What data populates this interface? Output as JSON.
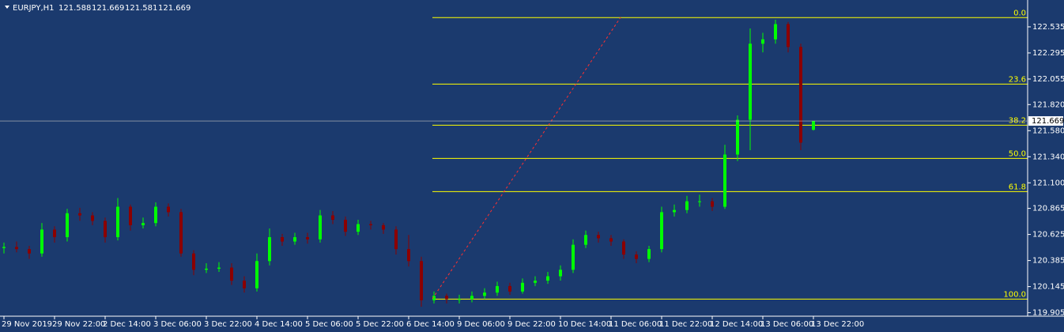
{
  "chart_data": {
    "type": "candlestick",
    "symbol": "EURJPY,H1",
    "categories": [
      "29 Nov 2019",
      null,
      null,
      null,
      "29 Nov 22:00",
      null,
      null,
      null,
      "2 Dec 14:00",
      null,
      null,
      null,
      "3 Dec 06:00",
      null,
      null,
      null,
      "3 Dec 22:00",
      null,
      null,
      null,
      "4 Dec 14:00",
      null,
      null,
      null,
      "5 Dec 06:00",
      null,
      null,
      null,
      "5 Dec 22:00",
      null,
      null,
      null,
      "6 Dec 14:00",
      null,
      null,
      null,
      "9 Dec 06:00",
      null,
      null,
      null,
      "9 Dec 22:00",
      null,
      null,
      null,
      "10 Dec 14:00",
      null,
      null,
      null,
      "11 Dec 06:00",
      null,
      null,
      null,
      "11 Dec 22:00",
      null,
      null,
      null,
      "12 Dec 14:00",
      null,
      null,
      null,
      "13 Dec 06:00",
      null,
      null,
      null,
      "13 Dec 22:00"
    ],
    "candles": {
      "open": [
        120.5,
        120.51,
        120.49,
        120.45,
        120.67,
        120.6,
        120.82,
        120.8,
        120.75,
        120.6,
        120.88,
        120.71,
        120.73,
        120.88,
        120.83,
        120.45,
        120.3,
        120.31,
        120.32,
        120.2,
        120.13,
        120.38,
        120.6,
        120.56,
        120.6,
        120.58,
        120.8,
        120.76,
        120.65,
        120.72,
        120.71,
        120.67,
        120.49,
        120.38,
        120.02,
        120.06,
        120.03,
        120.03,
        120.06,
        120.09,
        120.15,
        120.1,
        120.18,
        120.2,
        120.24,
        120.3,
        120.53,
        120.62,
        120.59,
        120.56,
        120.44,
        120.4,
        120.49,
        120.83,
        120.85,
        120.93,
        120.93,
        120.88,
        121.36,
        121.68,
        122.38,
        122.42,
        122.56,
        122.35,
        121.588
      ],
      "high": [
        120.55,
        120.56,
        120.52,
        120.73,
        120.7,
        120.86,
        120.87,
        120.83,
        120.78,
        120.96,
        120.9,
        120.78,
        120.92,
        120.91,
        120.86,
        120.48,
        120.36,
        120.37,
        120.36,
        120.24,
        120.45,
        120.68,
        120.63,
        120.64,
        120.64,
        120.85,
        120.84,
        120.79,
        120.76,
        120.75,
        120.73,
        120.7,
        120.62,
        120.42,
        120.1,
        120.08,
        120.07,
        120.1,
        120.13,
        120.19,
        120.18,
        120.22,
        120.24,
        120.28,
        120.34,
        120.58,
        120.66,
        120.65,
        120.62,
        120.58,
        120.47,
        120.52,
        120.88,
        120.9,
        120.98,
        120.99,
        120.96,
        121.45,
        121.72,
        122.52,
        122.48,
        122.6,
        122.58,
        122.38,
        121.669
      ],
      "low": [
        120.45,
        120.46,
        120.4,
        120.42,
        120.55,
        120.56,
        120.75,
        120.71,
        120.55,
        120.57,
        120.66,
        120.68,
        120.7,
        120.79,
        120.42,
        120.25,
        120.27,
        120.28,
        120.16,
        120.09,
        120.1,
        120.34,
        120.52,
        120.53,
        120.54,
        120.55,
        120.72,
        120.61,
        120.62,
        120.67,
        120.63,
        120.44,
        120.33,
        119.96,
        119.99,
        119.99,
        119.99,
        120.0,
        120.03,
        120.06,
        120.07,
        120.08,
        120.15,
        120.17,
        120.2,
        120.27,
        120.5,
        120.55,
        120.52,
        120.4,
        120.36,
        120.37,
        120.46,
        120.79,
        120.82,
        120.88,
        120.84,
        120.86,
        121.3,
        121.4,
        122.3,
        122.38,
        122.3,
        121.4,
        121.581
      ],
      "close": [
        120.51,
        120.49,
        120.45,
        120.67,
        120.6,
        120.82,
        120.8,
        120.75,
        120.6,
        120.88,
        120.71,
        120.73,
        120.88,
        120.83,
        120.45,
        120.3,
        120.31,
        120.32,
        120.2,
        120.13,
        120.38,
        120.6,
        120.56,
        120.6,
        120.58,
        120.8,
        120.76,
        120.65,
        120.72,
        120.71,
        120.67,
        120.49,
        120.38,
        120.02,
        120.06,
        120.03,
        120.03,
        120.06,
        120.09,
        120.15,
        120.1,
        120.18,
        120.2,
        120.24,
        120.3,
        120.53,
        120.62,
        120.59,
        120.56,
        120.44,
        120.4,
        120.49,
        120.83,
        120.85,
        120.93,
        120.93,
        120.88,
        121.36,
        121.68,
        122.38,
        122.42,
        122.56,
        122.35,
        121.47,
        121.669
      ]
    },
    "bull_color": "#00ff00",
    "bear_color": "#8b0000",
    "ylim": [
      119.873,
      122.782
    ],
    "yticks": [
      122.535,
      122.295,
      122.055,
      {
        "value": 121.82,
        "label": "121.820"
      },
      {
        "value": 121.58,
        "label": "121.580"
      },
      {
        "value": 121.34,
        "label": "121.340"
      },
      {
        "value": 121.1,
        "label": "121.100"
      },
      120.865,
      120.625,
      120.385,
      120.145,
      119.905
    ],
    "fibo": {
      "high": 122.62,
      "low": 120.03,
      "color": "#ffff00",
      "levels": [
        {
          "value": 0,
          "label": "0.0"
        },
        23.6,
        38.2,
        {
          "value": 50,
          "label": "50.0"
        },
        61.8,
        {
          "value": 100,
          "label": "100.0"
        }
      ]
    }
  }
}
